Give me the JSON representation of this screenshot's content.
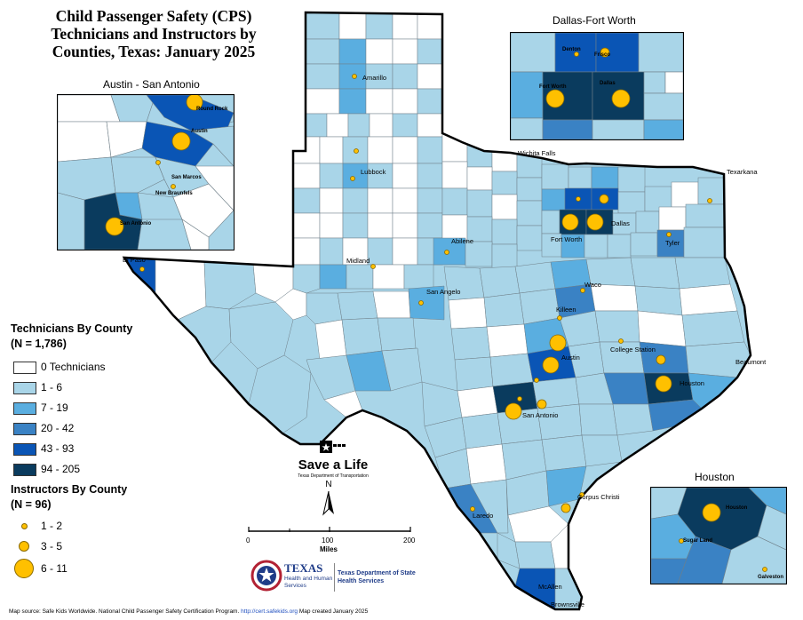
{
  "title": {
    "line1": "Child Passenger Safety (CPS)",
    "line2": "Technicians and Instructors by",
    "line3": "Counties, Texas: January 2025"
  },
  "insets": {
    "austin_label": "Austin - San Antonio",
    "dfw_label": "Dallas-Fort Worth",
    "houston_label": "Houston",
    "austin_cities": [
      "Round Rock",
      "Austin",
      "San Marcos",
      "New Braunfels",
      "San Antonio"
    ],
    "dfw_cities": [
      "Denton",
      "Frisco",
      "Fort Worth",
      "Dallas"
    ],
    "houston_cities": [
      "Houston",
      "Sugar Land",
      "Galveston"
    ]
  },
  "cities": {
    "amarillo": "Amarillo",
    "lubbock": "Lubbock",
    "wichita_falls": "Wichita Falls",
    "texarkana": "Texarkana",
    "abilene": "Abilene",
    "fort_worth": "Fort Worth",
    "dallas": "Dallas",
    "tyler": "Tyler",
    "el_paso": "El Paso",
    "midland": "Midland",
    "san_angelo": "San Angelo",
    "waco": "Waco",
    "killeen": "Killeen",
    "college_station": "College Station",
    "austin": "Austin",
    "beaumont": "Beaumont",
    "houston": "Houston",
    "san_antonio": "San Antonio",
    "corpus_christi": "Corpus Christi",
    "laredo": "Laredo",
    "mcallen": "McAllen",
    "brownsville": "Brownsville"
  },
  "legend": {
    "technicians_title": "Technicians By County",
    "technicians_n": "(N = 1,786)",
    "technicians": [
      {
        "label": "0 Technicians",
        "color": "#ffffff"
      },
      {
        "label": "1 - 6",
        "color": "#a9d5e8"
      },
      {
        "label": "7 - 19",
        "color": "#5aaee0"
      },
      {
        "label": "20 - 42",
        "color": "#3a82c4"
      },
      {
        "label": "43 - 93",
        "color": "#0a55b5"
      },
      {
        "label": "94 - 205",
        "color": "#0a3b5e"
      }
    ],
    "instructors_title": "Instructors By County",
    "instructors_n": "(N = 96)",
    "instructors": [
      {
        "label": "1 - 2"
      },
      {
        "label": "3 - 5"
      },
      {
        "label": "6 - 11"
      }
    ]
  },
  "compass_label": "N",
  "scale": {
    "ticks": [
      "0",
      "100",
      "200"
    ],
    "unit": "Miles"
  },
  "save_a_life": {
    "headline": "Save a Life",
    "sub": "Texas Department of Transportation"
  },
  "logos": {
    "hhs_line1": "TEXAS",
    "hhs_line2": "Health and Human",
    "hhs_line3": "Services",
    "dshs_line1": "Texas Department of State",
    "dshs_line2": "Health Services"
  },
  "source": {
    "prefix": "Map source: Safe Kids Worldwide. National Child Passenger Safety Certification Program.",
    "url": "http://cert.safekids.org",
    "suffix": "Map created January 2025"
  },
  "colors": {
    "instructor_dot": "#ffc000",
    "county_light": "#a9d5e8"
  }
}
